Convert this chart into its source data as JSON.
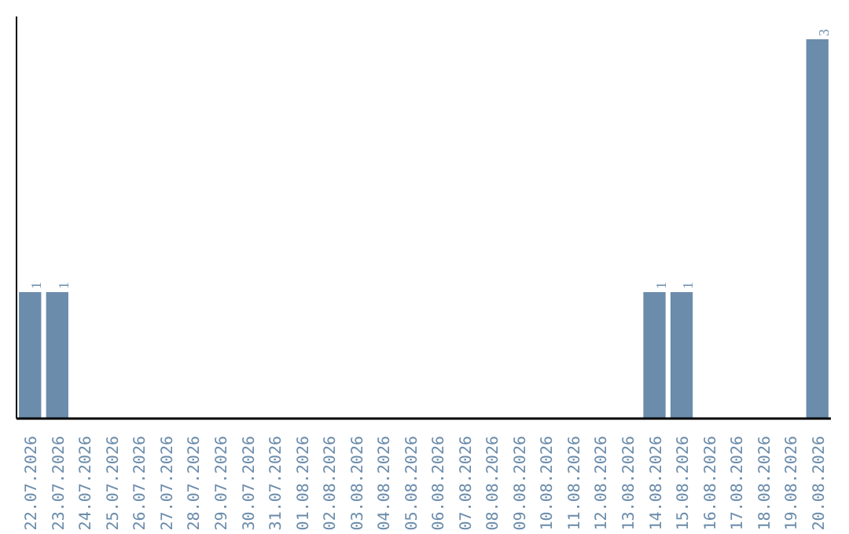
{
  "chart_data": {
    "type": "bar",
    "categories": [
      "22.07.2026",
      "23.07.2026",
      "24.07.2026",
      "25.07.2026",
      "26.07.2026",
      "27.07.2026",
      "28.07.2026",
      "29.07.2026",
      "30.07.2026",
      "31.07.2026",
      "01.08.2026",
      "02.08.2026",
      "03.08.2026",
      "04.08.2026",
      "05.08.2026",
      "06.08.2026",
      "07.08.2026",
      "08.08.2026",
      "09.08.2026",
      "10.08.2026",
      "11.08.2026",
      "12.08.2026",
      "13.08.2026",
      "14.08.2026",
      "15.08.2026",
      "16.08.2026",
      "17.08.2026",
      "18.08.2026",
      "19.08.2026",
      "20.08.2026"
    ],
    "values": [
      1,
      1,
      0,
      0,
      0,
      0,
      0,
      0,
      0,
      0,
      0,
      0,
      0,
      0,
      0,
      0,
      0,
      0,
      0,
      0,
      0,
      0,
      0,
      1,
      1,
      0,
      0,
      0,
      0,
      3
    ],
    "value_labels": [
      "1",
      "1",
      null,
      null,
      null,
      null,
      null,
      null,
      null,
      null,
      null,
      null,
      null,
      null,
      null,
      null,
      null,
      null,
      null,
      null,
      null,
      null,
      null,
      "1",
      "1",
      null,
      null,
      null,
      null,
      "3"
    ],
    "color": "#6b8cab",
    "grid": false
  }
}
